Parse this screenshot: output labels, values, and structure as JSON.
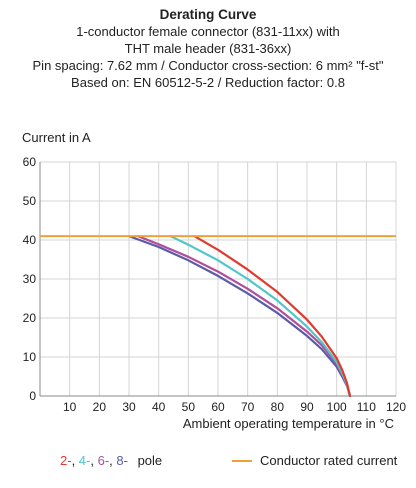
{
  "header": {
    "title": "Derating Curve",
    "line1": "1-conductor female connector (831-11xx) with",
    "line2": "THT male header (831-36xx)",
    "line3": "Pin spacing: 7.62 mm / Conductor cross-section: 6 mm² \"f-st\"",
    "line4": "Based on: EN 60512-5-2 / Reduction factor: 0.8"
  },
  "legend": {
    "pole_labels": [
      {
        "text": "2-",
        "color": "#e03a2f"
      },
      {
        "text": "4-",
        "color": "#4fc7c9"
      },
      {
        "text": "6-",
        "color": "#b04d9c"
      },
      {
        "text": "8-",
        "color": "#5a5aa6"
      }
    ],
    "separator": ", ",
    "pole_suffix": "pole",
    "rated_label": "Conductor rated current",
    "rated_color": "#f0a13a"
  },
  "chart_data": {
    "type": "line",
    "ylabel": "Current in A",
    "xlabel": "Ambient operating temperature in °C",
    "xlim": [
      0,
      120
    ],
    "ylim": [
      0,
      60
    ],
    "xticks": [
      10,
      20,
      30,
      40,
      50,
      60,
      70,
      80,
      90,
      100,
      110,
      120
    ],
    "yticks": [
      0,
      10,
      20,
      30,
      40,
      50,
      60
    ],
    "grid": true,
    "rated_current": 41,
    "series": [
      {
        "name": "8-",
        "color": "#5a5aa6",
        "x": [
          30,
          40,
          50,
          60,
          70,
          80,
          90,
          95,
          100,
          102,
          103.5,
          104.5
        ],
        "y": [
          41,
          38.2,
          34.8,
          30.8,
          26.3,
          21.3,
          15.4,
          12,
          7.5,
          4.8,
          2.5,
          0
        ]
      },
      {
        "name": "6-",
        "color": "#b04d9c",
        "x": [
          33,
          40,
          50,
          60,
          70,
          80,
          90,
          95,
          100,
          102,
          103.5,
          104.5
        ],
        "y": [
          41,
          38.9,
          35.7,
          31.9,
          27.5,
          22.5,
          16.5,
          13,
          8.3,
          5.3,
          2.7,
          0
        ]
      },
      {
        "name": "4-",
        "color": "#4fc7c9",
        "x": [
          44,
          50,
          60,
          70,
          80,
          90,
          95,
          100,
          102,
          103.5,
          104.5
        ],
        "y": [
          41,
          38.8,
          34.8,
          30,
          24.5,
          17.8,
          13.8,
          8.7,
          5.6,
          2.8,
          0
        ]
      },
      {
        "name": "2-",
        "color": "#e03a2f",
        "x": [
          52,
          60,
          70,
          80,
          90,
          95,
          100,
          102,
          103.5,
          104.5
        ],
        "y": [
          41,
          37.5,
          32.4,
          26.7,
          19.6,
          15.2,
          9.7,
          6.4,
          3.2,
          0
        ]
      }
    ]
  }
}
